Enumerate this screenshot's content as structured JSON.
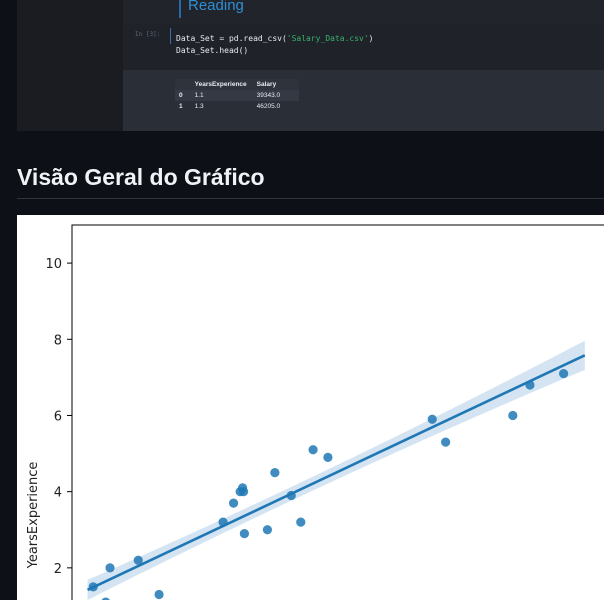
{
  "notebook": {
    "markdown_heading": "Reading",
    "cell_prompt": "In [3]:",
    "code_lines": [
      {
        "parts": [
          {
            "text": "Data_Set = pd.read_csv(",
            "kind": "plain"
          },
          {
            "text": "'Salary_Data.csv'",
            "kind": "str"
          },
          {
            "text": ")",
            "kind": "plain"
          }
        ]
      },
      {
        "parts": [
          {
            "text": "Data_Set.head()",
            "kind": "plain"
          }
        ]
      }
    ],
    "table": {
      "headers": [
        "",
        "YearsExperience",
        "Salary"
      ],
      "rows": [
        [
          "0",
          "1.1",
          "39343.0"
        ],
        [
          "1",
          "1.3",
          "46205.0"
        ]
      ]
    }
  },
  "section": {
    "title": "Visão Geral do Gráfico"
  },
  "chart_data": {
    "type": "scatter",
    "title": "",
    "xlabel": "",
    "ylabel": "YearsExperience",
    "ylim": [
      0.5,
      11
    ],
    "yticks": [
      "2",
      "4",
      "6",
      "8",
      "10"
    ],
    "regression_line": true,
    "confidence_band": true,
    "colors": {
      "points": "#1f77b4",
      "line": "#1f77b4",
      "band": "#c6dbef"
    },
    "points": [
      {
        "x": 37731,
        "y": 1.5
      },
      {
        "x": 39343,
        "y": 1.1
      },
      {
        "x": 43525,
        "y": 2.2
      },
      {
        "x": 39891,
        "y": 2.0
      },
      {
        "x": 46205,
        "y": 1.3
      },
      {
        "x": 54445,
        "y": 3.2
      },
      {
        "x": 56642,
        "y": 4.0
      },
      {
        "x": 57189,
        "y": 2.9
      },
      {
        "x": 57081,
        "y": 4.0
      },
      {
        "x": 56957,
        "y": 4.1
      },
      {
        "x": 55794,
        "y": 3.7
      },
      {
        "x": 60150,
        "y": 3.0
      },
      {
        "x": 61111,
        "y": 4.5
      },
      {
        "x": 63218,
        "y": 3.9
      },
      {
        "x": 64445,
        "y": 3.2
      },
      {
        "x": 66029,
        "y": 5.1
      },
      {
        "x": 67938,
        "y": 4.9
      },
      {
        "x": 81363,
        "y": 5.9
      },
      {
        "x": 83088,
        "y": 5.3
      },
      {
        "x": 93940,
        "y": 6.8
      },
      {
        "x": 91738,
        "y": 6.0
      },
      {
        "x": 98273,
        "y": 7.1
      }
    ],
    "fit": {
      "x0": 37000,
      "y0": 1.42,
      "x1": 101000,
      "y1": 7.58
    }
  }
}
